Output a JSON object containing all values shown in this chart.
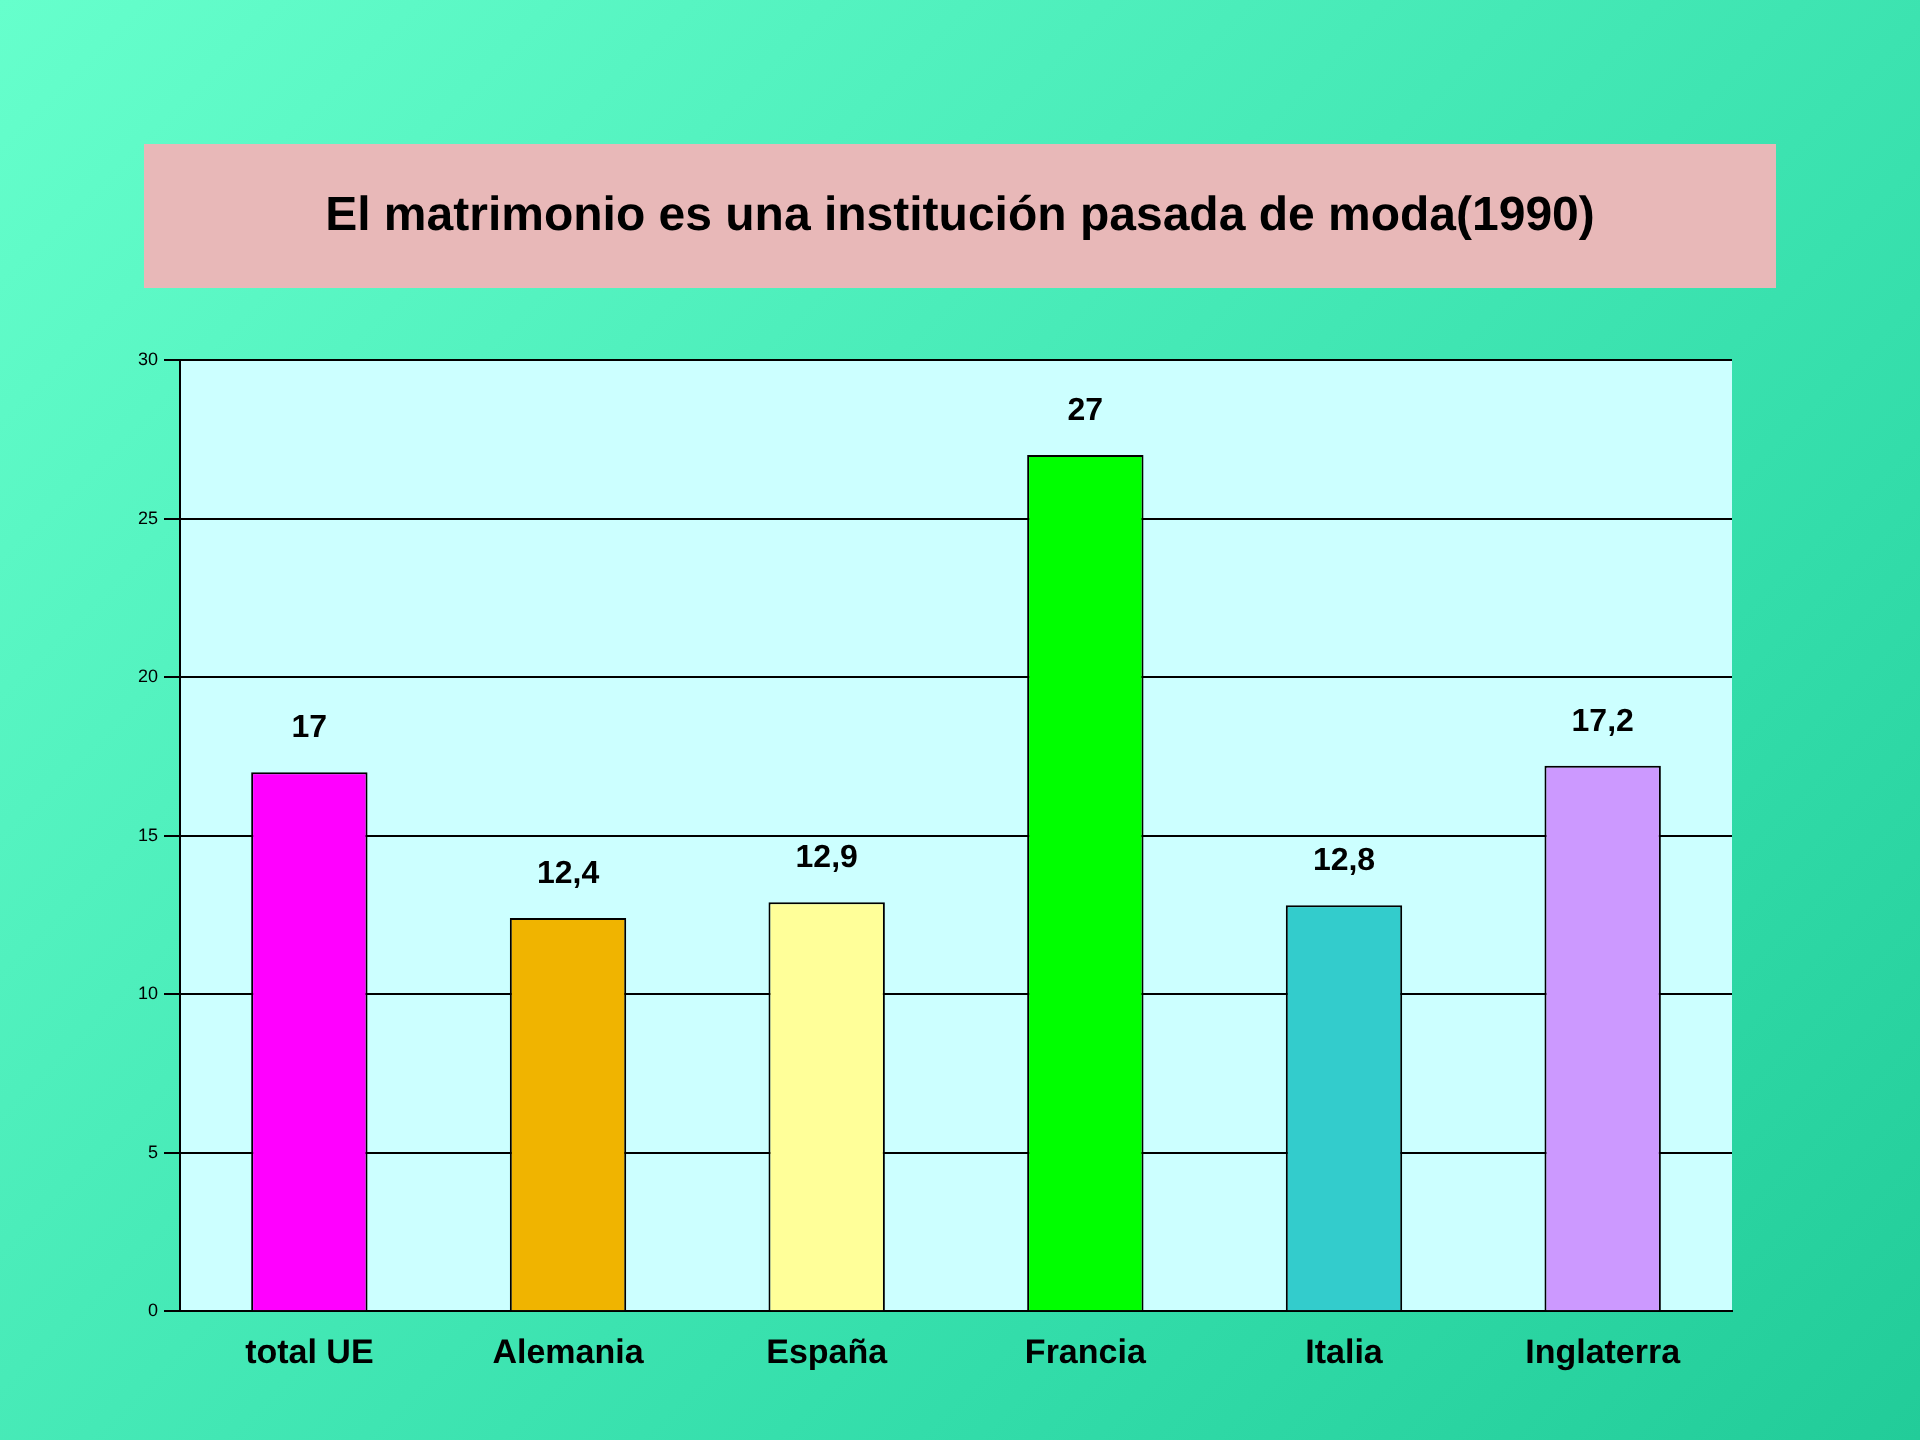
{
  "chart_data": {
    "type": "bar",
    "title": "El matrimonio es una institución pasada de moda(1990)",
    "categories": [
      "total UE",
      "Alemania",
      "España",
      "Francia",
      "Italia",
      "Inglaterra"
    ],
    "values": [
      17,
      12.4,
      12.9,
      27,
      12.8,
      17.2
    ],
    "value_labels": [
      "17",
      "12,4",
      "12,9",
      "27",
      "12,8",
      "17,2"
    ],
    "colors": [
      "#ff00ff",
      "#f0b400",
      "#ffff99",
      "#00ff00",
      "#33cccc",
      "#cc99ff"
    ],
    "ylim": [
      0,
      30
    ],
    "yticks": [
      0,
      5,
      10,
      15,
      20,
      25,
      30
    ],
    "grid": "y",
    "legend": false
  }
}
